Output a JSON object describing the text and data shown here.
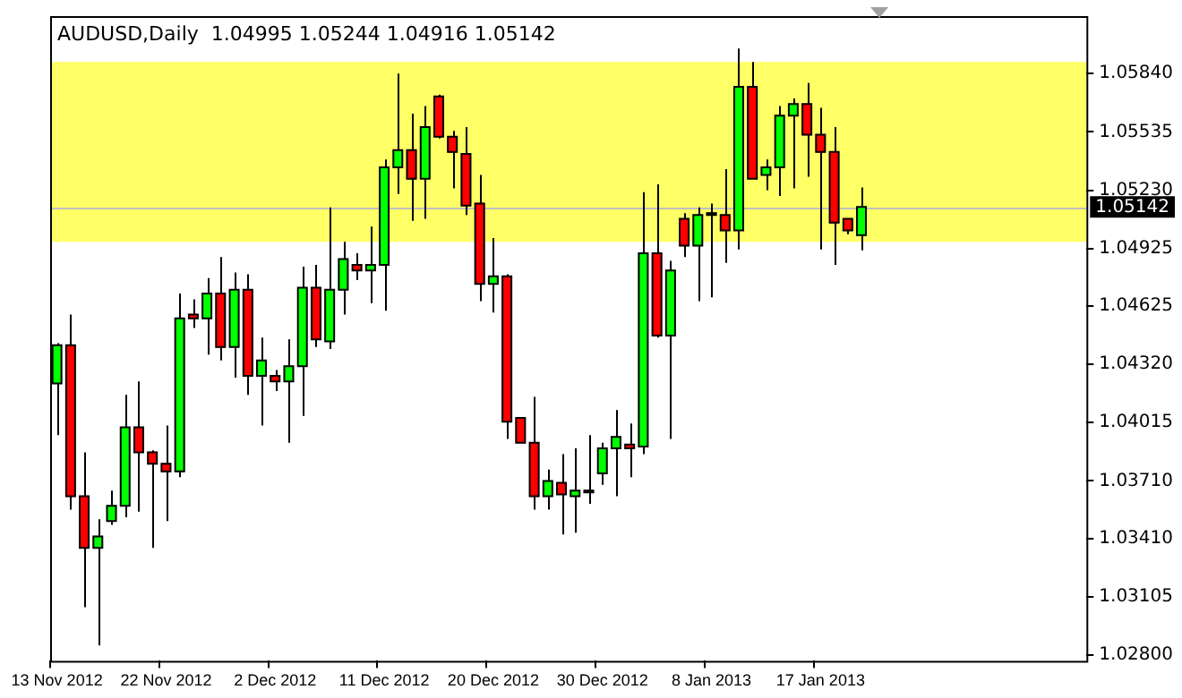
{
  "chart_data": {
    "type": "candlestick",
    "title": "AUDUSD,Daily  1.04995 1.05244 1.04916 1.05142",
    "categories": [
      "13 Nov 2012",
      null,
      null,
      null,
      null,
      null,
      null,
      null,
      "22 Nov 2012",
      null,
      null,
      null,
      null,
      null,
      null,
      null,
      "2 Dec 2012",
      null,
      null,
      null,
      null,
      null,
      null,
      null,
      "11 Dec 2012",
      null,
      null,
      null,
      null,
      null,
      null,
      null,
      "20 Dec 2012",
      null,
      null,
      null,
      null,
      null,
      null,
      null,
      "30 Dec 2012",
      null,
      null,
      null,
      null,
      null,
      null,
      null,
      "8 Jan 2013",
      null,
      null,
      null,
      null,
      null,
      null,
      null,
      "17 Jan 2013",
      null,
      null,
      null,
      null,
      null,
      null,
      null,
      null,
      null,
      null,
      null,
      null,
      null,
      null,
      null,
      null,
      null,
      null,
      null
    ],
    "ohlc": [
      [
        1.0422,
        1.0443,
        1.0395,
        1.0442
      ],
      [
        1.0442,
        1.0458,
        1.0356,
        1.0363
      ],
      [
        1.0363,
        1.0386,
        1.0305,
        1.0336
      ],
      [
        1.0336,
        1.0351,
        1.0285,
        1.0342
      ],
      [
        1.035,
        1.0366,
        1.0348,
        1.0358
      ],
      [
        1.0358,
        1.0416,
        1.0352,
        1.0399
      ],
      [
        1.0399,
        1.0423,
        1.0355,
        1.0386
      ],
      [
        1.0386,
        1.0387,
        1.0336,
        1.038
      ],
      [
        1.038,
        1.04,
        1.035,
        1.0376
      ],
      [
        1.0376,
        1.0469,
        1.0373,
        1.0456
      ],
      [
        1.0458,
        1.0466,
        1.0451,
        1.0456
      ],
      [
        1.0456,
        1.0477,
        1.0437,
        1.0469
      ],
      [
        1.0469,
        1.0488,
        1.0434,
        1.0441
      ],
      [
        1.0441,
        1.048,
        1.0425,
        1.0471
      ],
      [
        1.0471,
        1.0479,
        1.0416,
        1.0426
      ],
      [
        1.0426,
        1.0446,
        1.04,
        1.0434
      ],
      [
        1.0426,
        1.0429,
        1.0418,
        1.0423
      ],
      [
        1.0423,
        1.0445,
        1.0391,
        1.0431
      ],
      [
        1.0431,
        1.0483,
        1.0405,
        1.0472
      ],
      [
        1.0472,
        1.0484,
        1.0441,
        1.0445
      ],
      [
        1.0444,
        1.0514,
        1.044,
        1.0471
      ],
      [
        1.0471,
        1.0496,
        1.0458,
        1.0487
      ],
      [
        1.0484,
        1.049,
        1.0476,
        1.0481
      ],
      [
        1.0481,
        1.0504,
        1.0464,
        1.0484
      ],
      [
        1.0484,
        1.0539,
        1.046,
        1.0535
      ],
      [
        1.0535,
        1.0584,
        1.0521,
        1.0544
      ],
      [
        1.0544,
        1.0563,
        1.0507,
        1.0529
      ],
      [
        1.0529,
        1.0567,
        1.0508,
        1.0556
      ],
      [
        1.0572,
        1.0573,
        1.055,
        1.0551
      ],
      [
        1.0551,
        1.0554,
        1.0524,
        1.0543
      ],
      [
        1.0542,
        1.0556,
        1.051,
        1.0515
      ],
      [
        1.0516,
        1.0531,
        1.0465,
        1.0474
      ],
      [
        1.0474,
        1.0498,
        1.0459,
        1.0478
      ],
      [
        1.0478,
        1.0479,
        1.0393,
        1.0402
      ],
      [
        1.0404,
        1.0404,
        1.0391,
        1.0391
      ],
      [
        1.0391,
        1.0415,
        1.0356,
        1.0363
      ],
      [
        1.0363,
        1.0377,
        1.0356,
        1.0371
      ],
      [
        1.037,
        1.0385,
        1.0343,
        1.0364
      ],
      [
        1.0363,
        1.0388,
        1.0344,
        1.0366
      ],
      [
        1.0365,
        1.0395,
        1.0359,
        1.0366
      ],
      [
        1.0375,
        1.0391,
        1.0369,
        1.0388
      ],
      [
        1.0388,
        1.0408,
        1.0363,
        1.0394
      ],
      [
        1.039,
        1.0401,
        1.0373,
        1.0388
      ],
      [
        1.0389,
        1.0522,
        1.0385,
        1.049
      ],
      [
        1.049,
        1.0526,
        1.0446,
        1.0447
      ],
      [
        1.0447,
        1.0486,
        1.0393,
        1.0481
      ],
      [
        1.0508,
        1.0511,
        1.0488,
        1.0494
      ],
      [
        1.0494,
        1.0514,
        1.0465,
        1.051
      ],
      [
        1.051,
        1.0516,
        1.0467,
        1.0511
      ],
      [
        1.051,
        1.0534,
        1.0485,
        1.0502
      ],
      [
        1.0502,
        1.0597,
        1.0492,
        1.0577
      ],
      [
        1.0577,
        1.059,
        1.0529,
        1.0529
      ],
      [
        1.0531,
        1.0539,
        1.0523,
        1.0535
      ],
      [
        1.0535,
        1.0567,
        1.052,
        1.0562
      ],
      [
        1.0562,
        1.0571,
        1.0524,
        1.0568
      ],
      [
        1.0568,
        1.0579,
        1.053,
        1.0552
      ],
      [
        1.0552,
        1.0566,
        1.0492,
        1.0543
      ],
      [
        1.0543,
        1.0556,
        1.0484,
        1.0506
      ],
      [
        1.0508,
        1.0508,
        1.05,
        1.0502
      ],
      [
        1.04995,
        1.05244,
        1.04916,
        1.05142
      ],
      null,
      null,
      null,
      null,
      null,
      null,
      null,
      null,
      null,
      null,
      null,
      null,
      null,
      null,
      null,
      null
    ],
    "colors": [
      "#00ff00",
      "#ff0000",
      "#ff0000",
      "#00ff00",
      "#00ff00",
      "#00ff00",
      "#ff0000",
      "#ff0000",
      "#ff0000",
      "#00ff00",
      "#ff0000",
      "#00ff00",
      "#ff0000",
      "#00ff00",
      "#ff0000",
      "#00ff00",
      "#ff0000",
      "#00ff00",
      "#00ff00",
      "#ff0000",
      "#00ff00",
      "#00ff00",
      "#ff0000",
      "#00ff00",
      "#00ff00",
      "#00ff00",
      "#ff0000",
      "#00ff00",
      "#ff0000",
      "#ff0000",
      "#ff0000",
      "#ff0000",
      "#00ff00",
      "#ff0000",
      "#ff0000",
      "#ff0000",
      "#00ff00",
      "#ff0000",
      "#00ff00",
      "#000000",
      "#00ff00",
      "#00ff00",
      "#ff0000",
      "#00ff00",
      "#ff0000",
      "#00ff00",
      "#ff0000",
      "#00ff00",
      "#000000",
      "#ff0000",
      "#00ff00",
      "#ff0000",
      "#00ff00",
      "#00ff00",
      "#00ff00",
      "#ff0000",
      "#ff0000",
      "#ff0000",
      "#ff0000",
      "#00ff00",
      null,
      null,
      null,
      null,
      null,
      null,
      null,
      null,
      null,
      null,
      null,
      null,
      null,
      null,
      null,
      null
    ],
    "ylim": [
      1.0277,
      1.0614
    ],
    "yticks": [
      {
        "value": 1.0584,
        "label": "1.05840"
      },
      {
        "value": 1.05535,
        "label": "1.05535"
      },
      {
        "value": 1.0523,
        "label": "1.05230"
      },
      {
        "value": 1.04925,
        "label": "1.04925"
      },
      {
        "value": 1.04625,
        "label": "1.04625"
      },
      {
        "value": 1.0432,
        "label": "1.04320"
      },
      {
        "value": 1.04015,
        "label": "1.04015"
      },
      {
        "value": 1.0371,
        "label": "1.03710"
      },
      {
        "value": 1.0341,
        "label": "1.03410"
      },
      {
        "value": 1.03105,
        "label": "1.03105"
      },
      {
        "value": 1.028,
        "label": "1.02800"
      }
    ],
    "ref_lines": [
      {
        "axis": "y",
        "value": 1.05142,
        "label": "1.05142",
        "color": "#c0c0c0"
      }
    ],
    "bands": [
      {
        "axis": "y",
        "from": 1.0496,
        "to": 1.059,
        "color": "#ffff66"
      }
    ]
  }
}
